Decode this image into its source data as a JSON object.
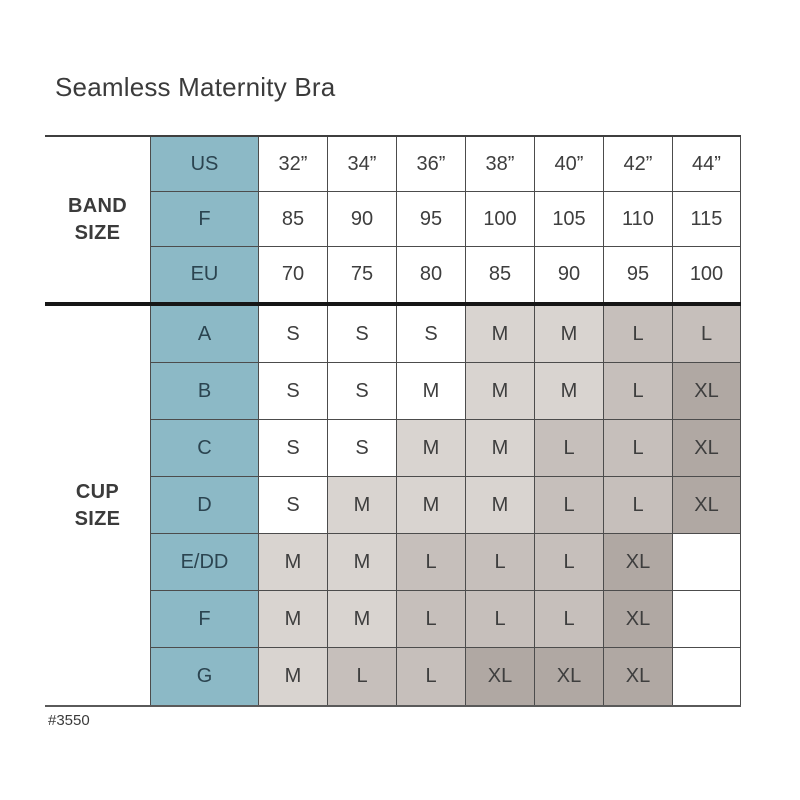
{
  "colors": {
    "teal_header": "#8cb9c6",
    "cell_light": "#d9d4d0",
    "cell_mid": "#c6bfbb",
    "cell_dark": "#b0a8a3",
    "thin_border": "#4c4c4c",
    "thick_separator": "#161616",
    "text": "#3e3e3e",
    "teal_text": "#2b4450"
  },
  "chart_data": {
    "type": "table",
    "title": "Seamless Maternity Bra",
    "item_number": "#3550",
    "columns": [
      "32”",
      "34”",
      "36”",
      "38”",
      "40”",
      "42”",
      "44”"
    ],
    "band_size": {
      "label": "BAND SIZE",
      "rows": [
        {
          "label": "US",
          "values": [
            "32”",
            "34”",
            "36”",
            "38”",
            "40”",
            "42”",
            "44”"
          ]
        },
        {
          "label": "F",
          "values": [
            "85",
            "90",
            "95",
            "100",
            "105",
            "110",
            "115"
          ]
        },
        {
          "label": "EU",
          "values": [
            "70",
            "75",
            "80",
            "85",
            "90",
            "95",
            "100"
          ]
        }
      ]
    },
    "cup_size": {
      "label": "CUP SIZE",
      "rows": [
        {
          "label": "A",
          "values": [
            "S",
            "S",
            "S",
            "M",
            "M",
            "L",
            "L"
          ],
          "shades": [
            "none",
            "none",
            "none",
            "light",
            "light",
            "mid",
            "mid"
          ]
        },
        {
          "label": "B",
          "values": [
            "S",
            "S",
            "M",
            "M",
            "M",
            "L",
            "XL"
          ],
          "shades": [
            "none",
            "none",
            "none",
            "light",
            "light",
            "mid",
            "dark"
          ]
        },
        {
          "label": "C",
          "values": [
            "S",
            "S",
            "M",
            "M",
            "L",
            "L",
            "XL"
          ],
          "shades": [
            "none",
            "none",
            "light",
            "light",
            "mid",
            "mid",
            "dark"
          ]
        },
        {
          "label": "D",
          "values": [
            "S",
            "M",
            "M",
            "M",
            "L",
            "L",
            "XL"
          ],
          "shades": [
            "none",
            "light",
            "light",
            "light",
            "mid",
            "mid",
            "dark"
          ]
        },
        {
          "label": "E/DD",
          "values": [
            "M",
            "M",
            "L",
            "L",
            "L",
            "XL",
            ""
          ],
          "shades": [
            "light",
            "light",
            "mid",
            "mid",
            "mid",
            "dark",
            "none"
          ]
        },
        {
          "label": "F",
          "values": [
            "M",
            "M",
            "L",
            "L",
            "L",
            "XL",
            ""
          ],
          "shades": [
            "light",
            "light",
            "mid",
            "mid",
            "mid",
            "dark",
            "none"
          ]
        },
        {
          "label": "G",
          "values": [
            "M",
            "L",
            "L",
            "XL",
            "XL",
            "XL",
            ""
          ],
          "shades": [
            "light",
            "mid",
            "mid",
            "dark",
            "dark",
            "dark",
            "none"
          ]
        }
      ]
    }
  }
}
